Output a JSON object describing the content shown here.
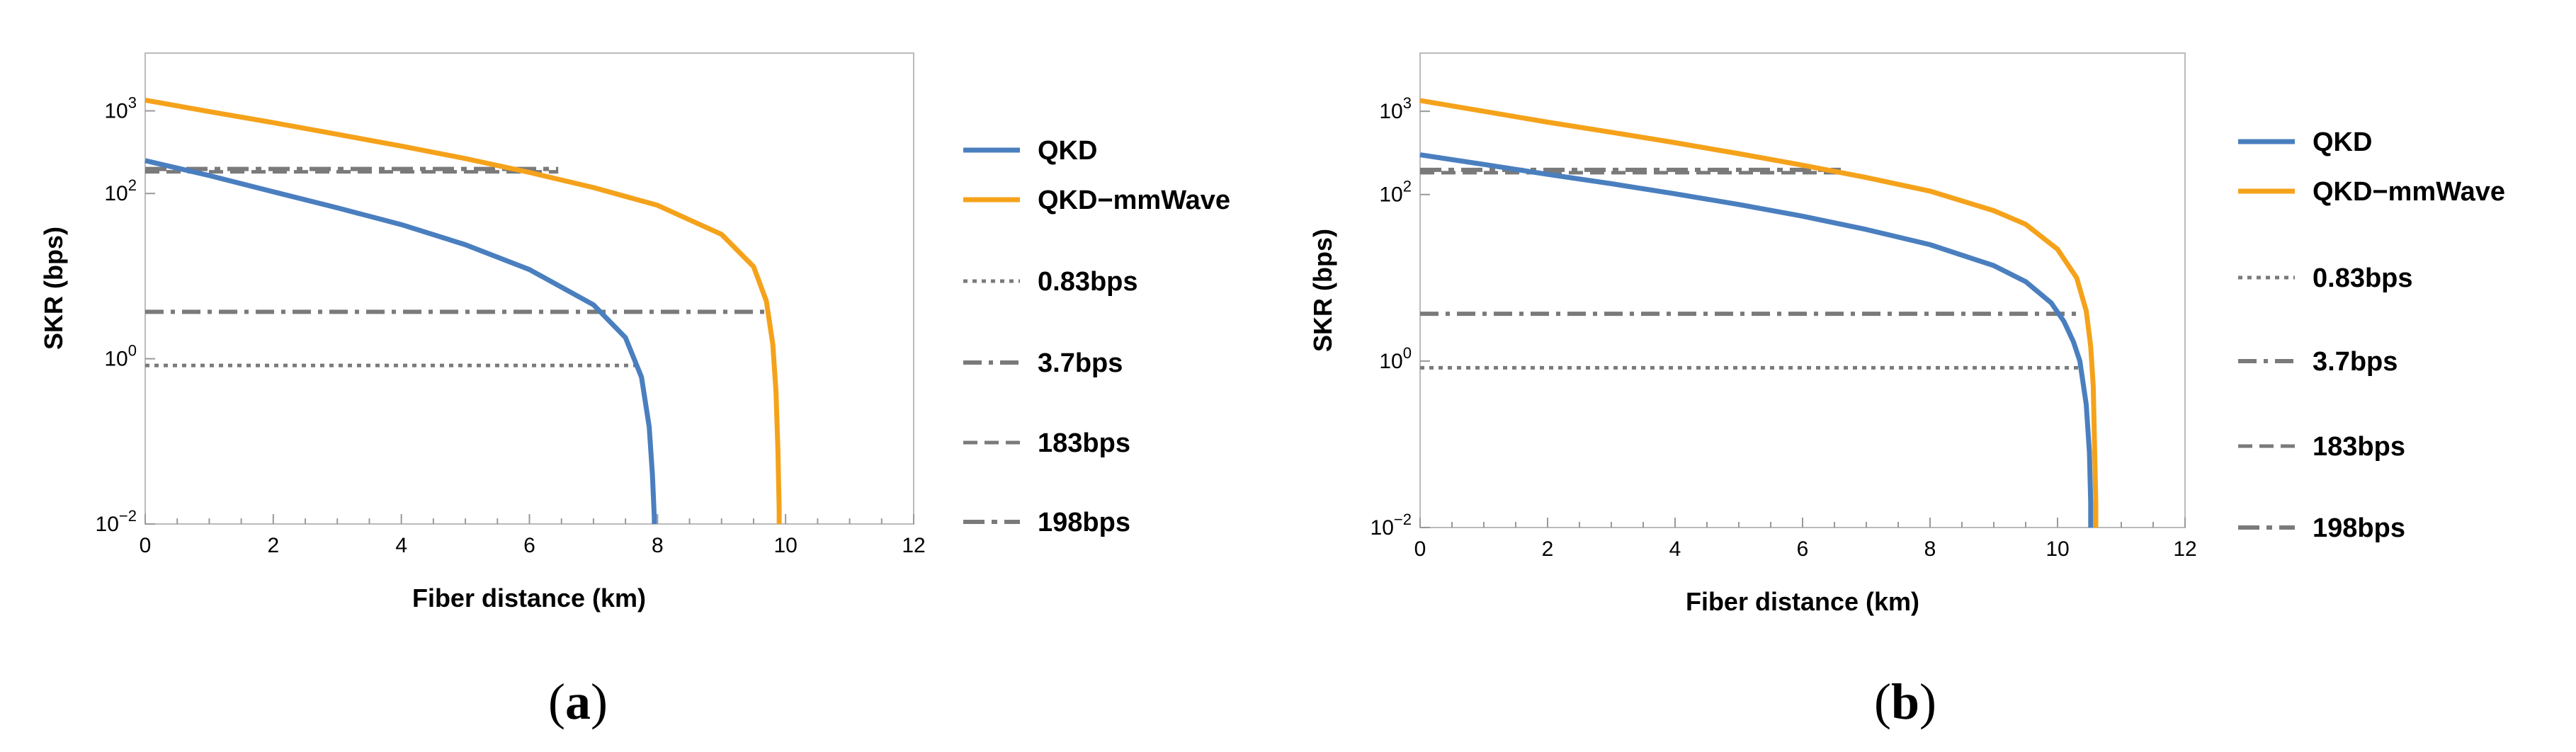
{
  "chart_data": [
    {
      "type": "line",
      "panel_label": "a",
      "caption_open": "(",
      "caption_close": ")",
      "xlabel": "Fiber distance (km)",
      "ylabel": "SKR (bps)",
      "xlim": [
        0,
        12
      ],
      "ylim": [
        0.01,
        5000
      ],
      "yscale": "log",
      "x_ticks": [
        "0",
        "2",
        "4",
        "6",
        "8",
        "10",
        "12"
      ],
      "y_ticks": [
        {
          "value": 0.01,
          "base": "10",
          "exp": "−2"
        },
        {
          "value": 1,
          "base": "10",
          "exp": "0"
        },
        {
          "value": 100,
          "base": "10",
          "exp": "2"
        },
        {
          "value": 1000,
          "base": "10",
          "exp": "3"
        }
      ],
      "series": [
        {
          "name": "QKD",
          "color": "#4a7fbf",
          "x": [
            0,
            1,
            2,
            3,
            4,
            5,
            6,
            7,
            7.5,
            7.75,
            7.87,
            7.92,
            7.95,
            7.95
          ],
          "y": [
            250,
            165,
            105,
            67,
            42,
            24,
            12,
            4.5,
            1.8,
            0.6,
            0.15,
            0.04,
            0.012,
            0.01
          ]
        },
        {
          "name": "QKD−mmWave",
          "color": "#f5a21b",
          "x": [
            0,
            1,
            2,
            3,
            4,
            5,
            6,
            7,
            8,
            9,
            9.5,
            9.7,
            9.8,
            9.85,
            9.88,
            9.9,
            9.9
          ],
          "y": [
            1350,
            980,
            720,
            520,
            375,
            265,
            180,
            118,
            72,
            32,
            13,
            5,
            1.5,
            0.4,
            0.08,
            0.015,
            0.01
          ]
        }
      ],
      "thresholds": [
        {
          "name": "0.83bps",
          "value": 0.83,
          "x_end": 7.75,
          "style": "dotted"
        },
        {
          "name": "3.7bps",
          "value": 3.7,
          "x_end": 9.75,
          "style": "dashdot"
        },
        {
          "name": "183bps",
          "value": 183,
          "x_end": 6.45,
          "style": "dashed"
        },
        {
          "name": "198bps",
          "value": 198,
          "x_end": 6.45,
          "style": "dashdot2"
        }
      ],
      "legend": [
        {
          "label": "QKD",
          "kind": "series",
          "ref": 0
        },
        {
          "label": "QKD−mmWave",
          "kind": "series",
          "ref": 1
        },
        {
          "label": "0.83bps",
          "kind": "threshold",
          "ref": 0
        },
        {
          "label": "3.7bps",
          "kind": "threshold",
          "ref": 1
        },
        {
          "label": "183bps",
          "kind": "threshold",
          "ref": 2
        },
        {
          "label": "198bps",
          "kind": "threshold",
          "ref": 3
        }
      ]
    },
    {
      "type": "line",
      "panel_label": "b",
      "caption_open": "(",
      "caption_close": ")",
      "xlabel": "Fiber distance (km)",
      "ylabel": "SKR (bps)",
      "xlim": [
        0,
        12
      ],
      "ylim": [
        0.01,
        5000
      ],
      "yscale": "log",
      "x_ticks": [
        "0",
        "2",
        "4",
        "6",
        "8",
        "10",
        "12"
      ],
      "y_ticks": [
        {
          "value": 0.01,
          "base": "10",
          "exp": "−2"
        },
        {
          "value": 1,
          "base": "10",
          "exp": "0"
        },
        {
          "value": 100,
          "base": "10",
          "exp": "2"
        },
        {
          "value": 1000,
          "base": "10",
          "exp": "3"
        }
      ],
      "series": [
        {
          "name": "QKD",
          "color": "#4a7fbf",
          "x": [
            0,
            1,
            2,
            3,
            4,
            5,
            6,
            7,
            8,
            9,
            9.5,
            9.9,
            10.1,
            10.25,
            10.35,
            10.45,
            10.5,
            10.52,
            10.52
          ],
          "y": [
            300,
            230,
            175,
            135,
            102,
            76,
            55,
            38,
            25,
            14,
            9,
            5,
            3,
            1.7,
            1,
            0.3,
            0.08,
            0.02,
            0.01
          ]
        },
        {
          "name": "QKD−mmWave",
          "color": "#f5a21b",
          "x": [
            0,
            1,
            2,
            3,
            4,
            5,
            6,
            7,
            8,
            9,
            9.5,
            10,
            10.3,
            10.45,
            10.52,
            10.56,
            10.58,
            10.6,
            10.6
          ],
          "y": [
            1350,
            1000,
            740,
            560,
            420,
            310,
            225,
            160,
            110,
            64,
            44,
            22,
            10,
            4,
            1.5,
            0.5,
            0.1,
            0.02,
            0.01
          ]
        }
      ],
      "thresholds": [
        {
          "name": "0.83bps",
          "value": 0.83,
          "x_end": 10.4,
          "style": "dotted"
        },
        {
          "name": "3.7bps",
          "value": 3.7,
          "x_end": 10.4,
          "style": "dashdot"
        },
        {
          "name": "183bps",
          "value": 183,
          "x_end": 6.6,
          "style": "dashed"
        },
        {
          "name": "198bps",
          "value": 198,
          "x_end": 6.6,
          "style": "dashdot2"
        }
      ],
      "legend": [
        {
          "label": "QKD",
          "kind": "series",
          "ref": 0
        },
        {
          "label": "QKD−mmWave",
          "kind": "series",
          "ref": 1
        },
        {
          "label": "0.83bps",
          "kind": "threshold",
          "ref": 0
        },
        {
          "label": "3.7bps",
          "kind": "threshold",
          "ref": 1
        },
        {
          "label": "183bps",
          "kind": "threshold",
          "ref": 2
        },
        {
          "label": "198bps",
          "kind": "threshold",
          "ref": 3
        }
      ]
    }
  ]
}
